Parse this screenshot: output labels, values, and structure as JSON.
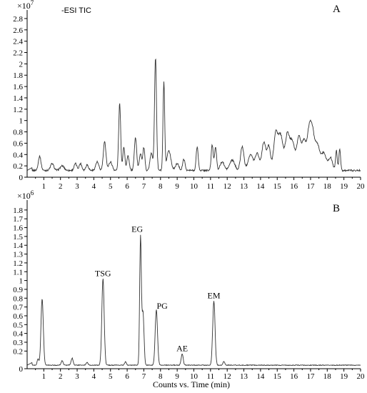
{
  "chart_data": [
    {
      "type": "line",
      "panel_label": "A",
      "scale_label": "×10",
      "scale_exponent": "7",
      "trace_label": "-ESI TIC",
      "xlabel": "",
      "ylabel": "",
      "xlim": [
        0,
        20
      ],
      "ylim": [
        0,
        2.9
      ],
      "x_ticks": [
        "1",
        "2",
        "3",
        "4",
        "5",
        "6",
        "7",
        "8",
        "9",
        "10",
        "11",
        "12",
        "13",
        "14",
        "15",
        "16",
        "17",
        "18",
        "19",
        "20"
      ],
      "y_ticks": [
        "0",
        "0.2",
        "0.4",
        "0.6",
        "0.8",
        "1",
        "1.2",
        "1.4",
        "1.6",
        "1.8",
        "2",
        "2.2",
        "2.4",
        "2.6",
        "2.8"
      ],
      "baseline": 0.12,
      "peaks": [
        [
          0.75,
          0.08,
          0.25
        ],
        [
          1.5,
          0.1,
          0.12
        ],
        [
          2.1,
          0.12,
          0.08
        ],
        [
          2.9,
          0.08,
          0.12
        ],
        [
          3.2,
          0.08,
          0.12
        ],
        [
          3.6,
          0.08,
          0.1
        ],
        [
          4.2,
          0.09,
          0.15
        ],
        [
          4.65,
          0.08,
          0.5
        ],
        [
          5.0,
          0.1,
          0.15
        ],
        [
          5.55,
          0.06,
          1.18
        ],
        [
          5.8,
          0.06,
          0.42
        ],
        [
          6.05,
          0.07,
          0.25
        ],
        [
          6.5,
          0.07,
          0.58
        ],
        [
          6.8,
          0.07,
          0.3
        ],
        [
          7.0,
          0.06,
          0.4
        ],
        [
          7.45,
          0.08,
          0.3
        ],
        [
          7.7,
          0.06,
          1.98
        ],
        [
          8.2,
          0.05,
          1.55
        ],
        [
          8.5,
          0.12,
          0.35
        ],
        [
          9.0,
          0.1,
          0.12
        ],
        [
          9.4,
          0.07,
          0.2
        ],
        [
          10.2,
          0.06,
          0.42
        ],
        [
          11.1,
          0.06,
          0.45
        ],
        [
          11.3,
          0.06,
          0.42
        ],
        [
          11.7,
          0.12,
          0.15
        ],
        [
          12.3,
          0.15,
          0.18
        ],
        [
          12.9,
          0.1,
          0.42
        ],
        [
          13.4,
          0.15,
          0.28
        ],
        [
          13.8,
          0.12,
          0.3
        ],
        [
          14.2,
          0.12,
          0.5
        ],
        [
          14.5,
          0.1,
          0.42
        ],
        [
          14.9,
          0.12,
          0.6
        ],
        [
          15.2,
          0.15,
          0.62
        ],
        [
          15.6,
          0.12,
          0.58
        ],
        [
          15.9,
          0.15,
          0.52
        ],
        [
          16.3,
          0.12,
          0.58
        ],
        [
          16.6,
          0.12,
          0.5
        ],
        [
          16.9,
          0.12,
          0.62
        ],
        [
          17.1,
          0.12,
          0.6
        ],
        [
          17.4,
          0.15,
          0.45
        ],
        [
          17.8,
          0.15,
          0.3
        ],
        [
          18.2,
          0.12,
          0.22
        ],
        [
          18.55,
          0.05,
          0.35
        ],
        [
          18.75,
          0.05,
          0.38
        ]
      ],
      "annotations": []
    },
    {
      "type": "line",
      "panel_label": "B",
      "scale_label": "×10",
      "scale_exponent": "6",
      "trace_label": "",
      "xlabel": "Counts vs. Time (min)",
      "ylabel": "",
      "xlim": [
        0,
        20
      ],
      "ylim": [
        0,
        1.88
      ],
      "x_ticks": [
        "1",
        "2",
        "3",
        "4",
        "5",
        "6",
        "7",
        "8",
        "9",
        "10",
        "11",
        "12",
        "13",
        "14",
        "15",
        "16",
        "17",
        "18",
        "19",
        "20"
      ],
      "y_ticks": [
        "0",
        "0.2",
        "0.3",
        "0.4",
        "0.5",
        "0.6",
        "0.7",
        "0.8",
        "0.9",
        "1",
        "1.1",
        "1.2",
        "1.3",
        "1.4",
        "1.5",
        "1.6",
        "1.7",
        "1.8"
      ],
      "baseline": 0.04,
      "peaks": [
        [
          0.65,
          0.05,
          0.07
        ],
        [
          0.9,
          0.07,
          0.75
        ],
        [
          2.1,
          0.06,
          0.05
        ],
        [
          2.7,
          0.06,
          0.08
        ],
        [
          3.6,
          0.06,
          0.03
        ],
        [
          4.55,
          0.07,
          0.98
        ],
        [
          5.9,
          0.05,
          0.04
        ],
        [
          6.8,
          0.05,
          1.45
        ],
        [
          6.95,
          0.06,
          0.6
        ],
        [
          7.75,
          0.07,
          0.63
        ],
        [
          9.3,
          0.06,
          0.13
        ],
        [
          11.2,
          0.07,
          0.73
        ],
        [
          11.8,
          0.06,
          0.04
        ]
      ],
      "annotations": [
        {
          "text": "TSG",
          "x": 4.55,
          "y": 1.05
        },
        {
          "text": "EG",
          "x": 6.6,
          "y": 1.55
        },
        {
          "text": "PG",
          "x": 8.1,
          "y": 0.68
        },
        {
          "text": "AE",
          "x": 9.3,
          "y": 0.2
        },
        {
          "text": "EM",
          "x": 11.2,
          "y": 0.8
        }
      ]
    }
  ]
}
